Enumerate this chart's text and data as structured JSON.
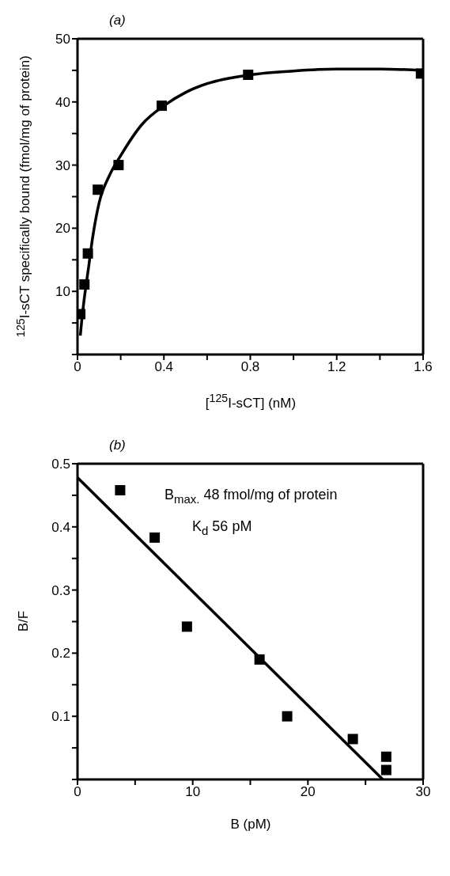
{
  "chart_data": [
    {
      "type": "scatter",
      "title": "(a)",
      "xlabel": "[$^{125}$I-sCT] (nM)",
      "ylabel": "$^{125}$I-sCT specifically bound (fmol/mg of protein)",
      "xlim": [
        0,
        1.6
      ],
      "xticks": [
        0,
        {
          "value": 0.2,
          "label": null
        },
        0.4,
        {
          "value": 0.6,
          "label": null
        },
        0.8,
        {
          "value": 1.0,
          "label": null
        },
        1.2,
        {
          "value": 1.4,
          "label": null
        },
        1.6
      ],
      "ylim": [
        0,
        50
      ],
      "yticks": [
        {
          "value": 0,
          "label": null
        },
        {
          "value": 5,
          "label": null
        },
        10,
        {
          "value": 15,
          "label": null
        },
        20,
        {
          "value": 25,
          "label": null
        },
        30,
        {
          "value": 35,
          "label": null
        },
        40,
        {
          "value": 45,
          "label": null
        },
        50
      ],
      "marker": "square",
      "series": [
        {
          "color": "#000000",
          "x": [
            0.013,
            0.032,
            0.048,
            0.094,
            0.19,
            0.39,
            0.79,
            1.59
          ],
          "values": [
            6.4,
            11.1,
            16.0,
            26.1,
            30.0,
            39.4,
            44.3,
            44.5
          ]
        },
        {
          "type": "line",
          "color": "#000000",
          "marker": "none",
          "line_style": "solid",
          "x": [
            0.013,
            0.02,
            0.03,
            0.05,
            0.07,
            0.1,
            0.15,
            0.2,
            0.3,
            0.4,
            0.5,
            0.6,
            0.8,
            1.0,
            1.2,
            1.4,
            1.6
          ],
          "values": [
            3,
            5.5,
            8.5,
            13.5,
            18.5,
            24,
            28.5,
            31.5,
            36.5,
            39.4,
            41.5,
            42.9,
            44.3,
            44.9,
            45.2,
            45.2,
            45
          ]
        }
      ]
    },
    {
      "type": "scatter",
      "title": "(b)",
      "xlabel": "B (pM)",
      "ylabel": "B/F",
      "annotations": [
        "B$_{max.}$ 48 fmol/mg of protein",
        "K$_{d}$ 56 pM"
      ],
      "xlim": [
        0,
        30
      ],
      "xticks": [
        0,
        {
          "value": 5,
          "label": null
        },
        10,
        {
          "value": 15,
          "label": null
        },
        20,
        {
          "value": 25,
          "label": null
        },
        30
      ],
      "ylim": [
        0,
        0.5
      ],
      "yticks": [
        {
          "value": 0,
          "label": null
        },
        {
          "value": 0.05,
          "label": null
        },
        0.1,
        {
          "value": 0.15,
          "label": null
        },
        0.2,
        {
          "value": 0.25,
          "label": null
        },
        0.3,
        {
          "value": 0.35,
          "label": null
        },
        0.4,
        {
          "value": 0.45,
          "label": null
        },
        0.5
      ],
      "marker": "square",
      "series": [
        {
          "color": "#000000",
          "x": [
            3.7,
            6.7,
            9.5,
            15.8,
            18.2,
            23.9,
            26.8,
            26.8
          ],
          "values": [
            0.458,
            0.383,
            0.242,
            0.19,
            0.1,
            0.064,
            0.036,
            0.015
          ]
        },
        {
          "type": "line",
          "color": "#000000",
          "marker": "none",
          "line_style": "solid",
          "x": [
            0,
            26.5
          ],
          "values": [
            0.478,
            0
          ]
        }
      ]
    }
  ]
}
